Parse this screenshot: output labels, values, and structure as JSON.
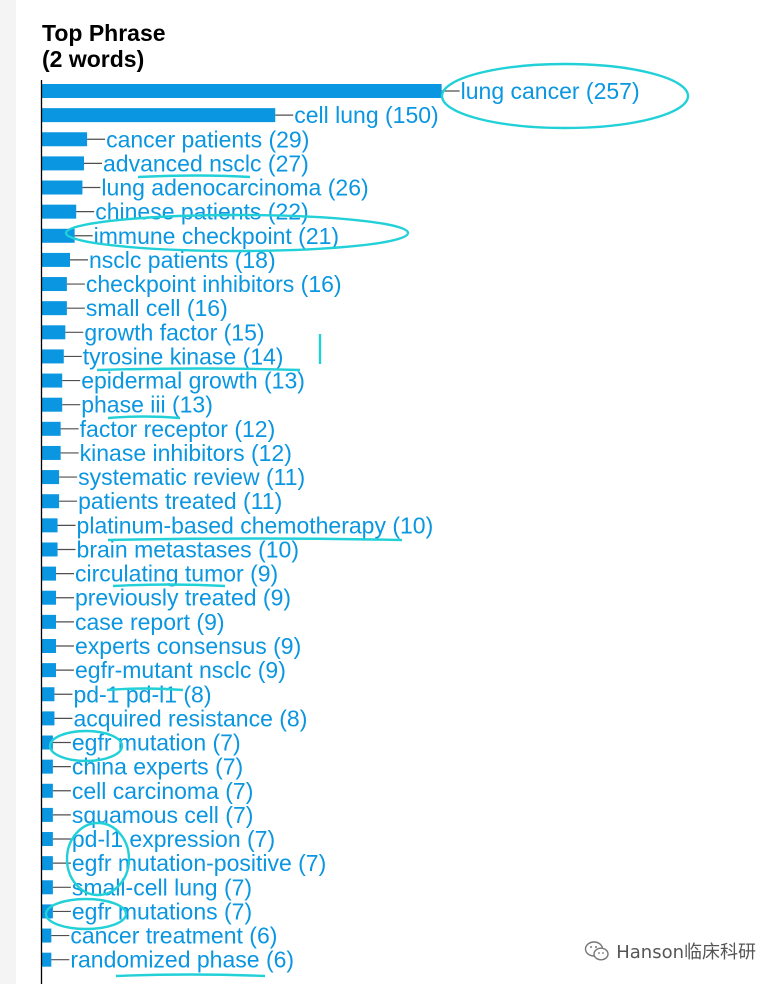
{
  "chart_data": {
    "type": "bar",
    "orientation": "horizontal",
    "title": "Top Phrase\n(2 words)",
    "categories": [
      "lung cancer",
      "cell lung",
      "cancer patients",
      "advanced nsclc",
      "lung adenocarcinoma",
      "chinese patients",
      "immune checkpoint",
      "nsclc patients",
      "checkpoint inhibitors",
      "small cell",
      "growth factor",
      "tyrosine kinase",
      "epidermal growth",
      "phase iii",
      "factor receptor",
      "kinase inhibitors",
      "systematic review",
      "patients treated",
      "platinum-based chemotherapy",
      "brain metastases",
      "circulating tumor",
      "previously treated",
      "case report",
      "experts consensus",
      "egfr-mutant nsclc",
      "pd-1 pd-l1",
      "acquired resistance",
      "egfr mutation",
      "china experts",
      "cell carcinoma",
      "squamous cell",
      "pd-l1 expression",
      "egfr mutation-positive",
      "small-cell lung",
      "egfr mutations",
      "cancer treatment",
      "randomized phase"
    ],
    "values": [
      257,
      150,
      29,
      27,
      26,
      22,
      21,
      18,
      16,
      16,
      15,
      14,
      13,
      13,
      12,
      12,
      11,
      11,
      10,
      10,
      9,
      9,
      9,
      9,
      9,
      8,
      8,
      7,
      7,
      7,
      7,
      7,
      7,
      7,
      7,
      6,
      6
    ],
    "labels": [
      "lung cancer (257)",
      "cell lung (150)",
      "cancer patients (29)",
      "advanced nsclc (27)",
      "lung adenocarcinoma (26)",
      "chinese patients (22)",
      "immune checkpoint (21)",
      "nsclc patients (18)",
      "checkpoint inhibitors (16)",
      "small cell (16)",
      "growth factor (15)",
      "tyrosine kinase (14)",
      "epidermal growth (13)",
      "phase iii (13)",
      "factor receptor (12)",
      "kinase inhibitors (12)",
      "systematic review (11)",
      "patients treated (11)",
      "platinum-based chemotherapy (10)",
      "brain metastases (10)",
      "circulating tumor (9)",
      "previously treated (9)",
      "case report (9)",
      "experts consensus (9)",
      "egfr-mutant nsclc (9)",
      "pd-1 pd-l1 (8)",
      "acquired resistance (8)",
      "egfr mutation (7)",
      "china experts (7)",
      "cell carcinoma (7)",
      "squamous cell (7)",
      "pd-l1 expression (7)",
      "egfr mutation-positive (7)",
      "small-cell lung (7)",
      "egfr mutations (7)",
      "cancer treatment (6)",
      "randomized phase (6)"
    ],
    "grid": false,
    "legend": "none",
    "colors": {
      "bar": "#0a96e0",
      "label": "#0a96e0",
      "annotation": "#22d0d8"
    }
  },
  "watermark": {
    "text": "Hanson临床科研",
    "icon": "wechat-icon"
  }
}
